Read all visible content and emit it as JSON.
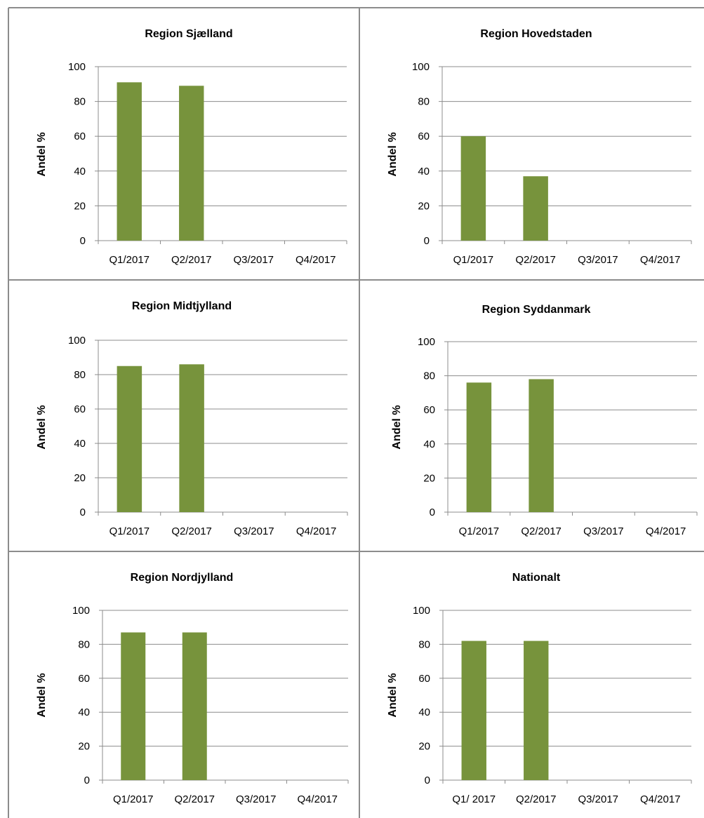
{
  "chart_data": [
    {
      "type": "bar",
      "title": "Region Sjælland",
      "ylabel": "Andel %",
      "xlabel": "",
      "categories": [
        "Q1/2017",
        "Q2/2017",
        "Q3/2017",
        "Q4/2017"
      ],
      "values": [
        91,
        89,
        null,
        null
      ],
      "ylim": [
        0,
        100
      ],
      "yticks": [
        0,
        20,
        40,
        60,
        80,
        100
      ],
      "grid": true,
      "bar_color": "#77933c"
    },
    {
      "type": "bar",
      "title": "Region Hovedstaden",
      "ylabel": "Andel %",
      "xlabel": "",
      "categories": [
        "Q1/2017",
        "Q2/2017",
        "Q3/2017",
        "Q4/2017"
      ],
      "values": [
        60,
        37,
        null,
        null
      ],
      "ylim": [
        0,
        100
      ],
      "yticks": [
        0,
        20,
        40,
        60,
        80,
        100
      ],
      "grid": true,
      "bar_color": "#77933c"
    },
    {
      "type": "bar",
      "title": "Region Midtjylland",
      "ylabel": "Andel %",
      "xlabel": "",
      "categories": [
        "Q1/2017",
        "Q2/2017",
        "Q3/2017",
        "Q4/2017"
      ],
      "values": [
        85,
        86,
        null,
        null
      ],
      "ylim": [
        0,
        100
      ],
      "yticks": [
        0,
        20,
        40,
        60,
        80,
        100
      ],
      "grid": true,
      "bar_color": "#77933c"
    },
    {
      "type": "bar",
      "title": "Region Syddanmark",
      "ylabel": "Andel %",
      "xlabel": "",
      "categories": [
        "Q1/2017",
        "Q2/2017",
        "Q3/2017",
        "Q4/2017"
      ],
      "values": [
        76,
        78,
        null,
        null
      ],
      "ylim": [
        0,
        100
      ],
      "yticks": [
        0,
        20,
        40,
        60,
        80,
        100
      ],
      "grid": true,
      "bar_color": "#77933c"
    },
    {
      "type": "bar",
      "title": "Region Nordjylland",
      "ylabel": "Andel %",
      "xlabel": "",
      "categories": [
        "Q1/2017",
        "Q2/2017",
        "Q3/2017",
        "Q4/2017"
      ],
      "values": [
        87,
        87,
        null,
        null
      ],
      "ylim": [
        0,
        100
      ],
      "yticks": [
        0,
        20,
        40,
        60,
        80,
        100
      ],
      "grid": true,
      "bar_color": "#77933c"
    },
    {
      "type": "bar",
      "title": "Nationalt",
      "ylabel": "Andel %",
      "xlabel": "",
      "categories": [
        "Q1/ 2017",
        "Q2/2017",
        "Q3/2017",
        "Q4/2017"
      ],
      "values": [
        82,
        82,
        null,
        null
      ],
      "ylim": [
        0,
        100
      ],
      "yticks": [
        0,
        20,
        40,
        60,
        80,
        100
      ],
      "grid": true,
      "bar_color": "#77933c"
    }
  ],
  "colors": {
    "frame": "#8c8c8c",
    "gridline": "#8c8c8c",
    "bar": "#77933c"
  }
}
